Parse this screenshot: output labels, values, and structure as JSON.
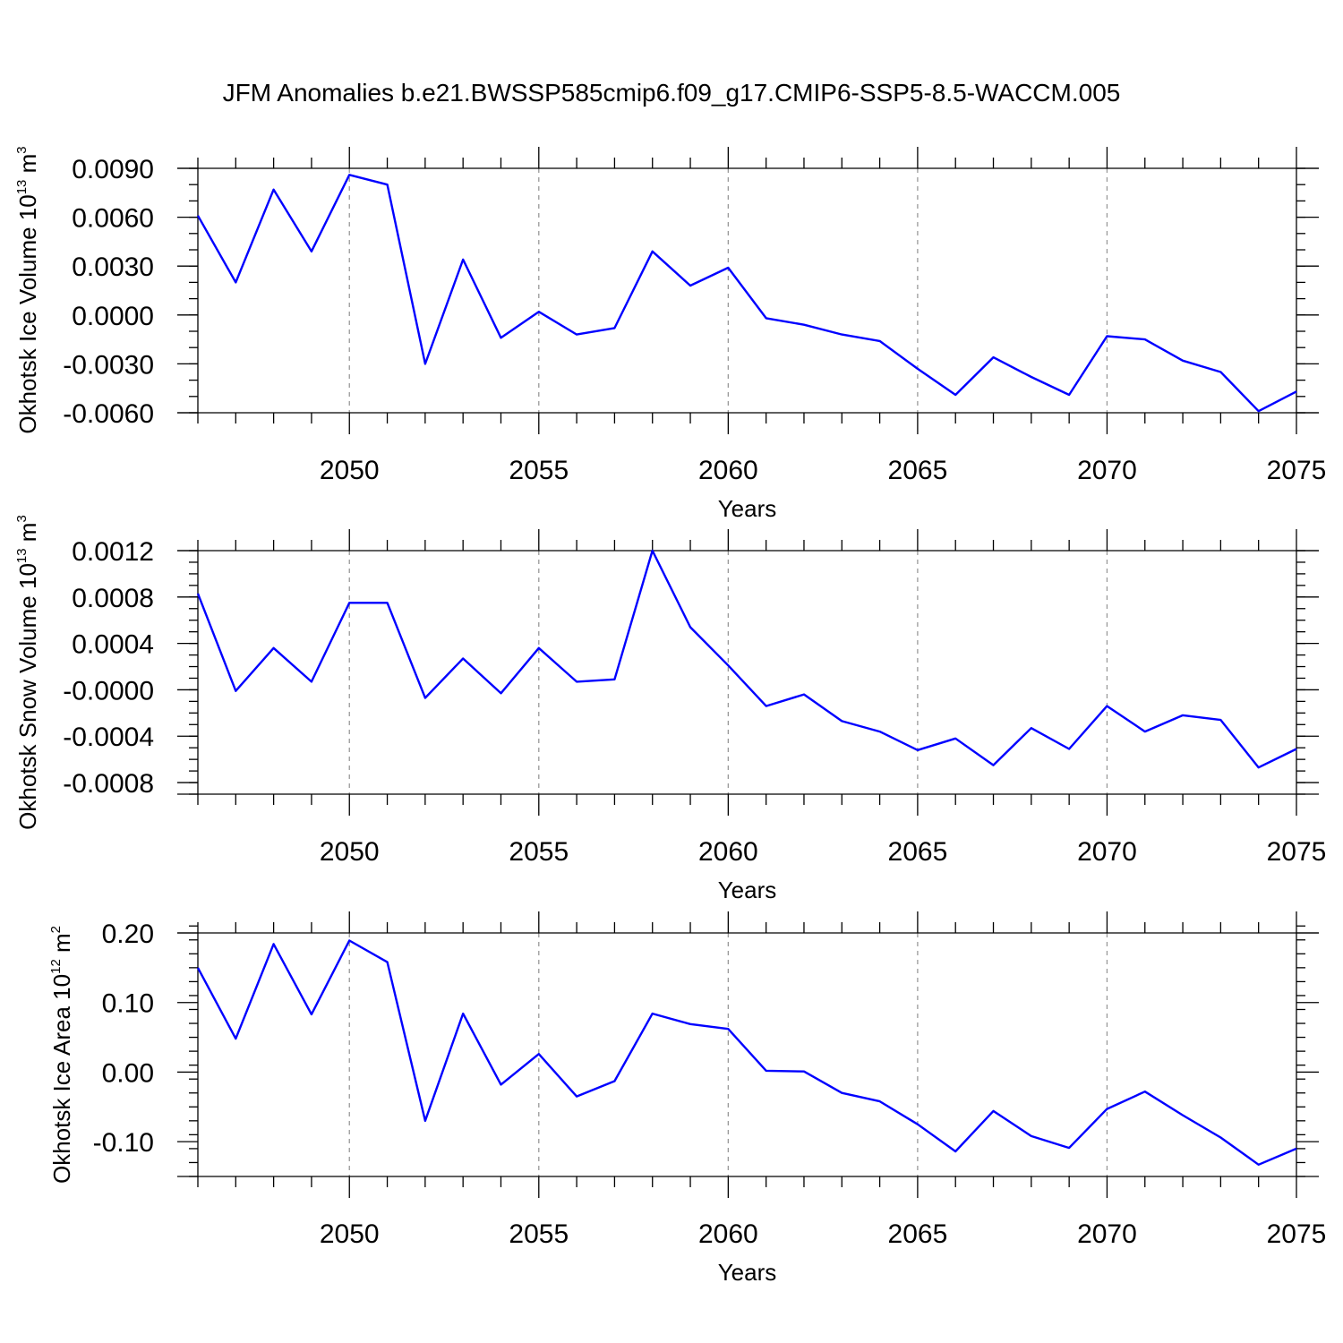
{
  "figure": {
    "title": "JFM Anomalies b.e21.BWSSP585cmip6.f09_g17.CMIP6-SSP5-8.5-WACCM.005"
  },
  "colors": {
    "series": "#0000ff",
    "grid": "#999999",
    "axis": "#000000"
  },
  "chart_data": [
    {
      "type": "line",
      "title": "JFM Anomalies b.e21.BWSSP585cmip6.f09_g17.CMIP6-SSP5-8.5-WACCM.005",
      "xlabel": "Years",
      "ylabel_main": "Okhotsk Ice Volume 10",
      "ylabel_exp": "13",
      "ylabel_unit": "m",
      "ylabel_unit_exp": "3",
      "xlim": [
        2046,
        2075
      ],
      "ylim": [
        -0.006,
        0.009
      ],
      "yticks": [
        0.009,
        0.006,
        0.003,
        0.0,
        -0.003,
        -0.006
      ],
      "ytick_labels": [
        "0.0090",
        "0.0060",
        "0.0030",
        "0.0000",
        "-0.0030",
        "-0.0060"
      ],
      "ytick_minor_step": 0.001,
      "xticks": [
        2050,
        2055,
        2060,
        2065,
        2070,
        2075
      ],
      "xtick_labels": [
        "2050",
        "2055",
        "2060",
        "2065",
        "2070",
        "2075"
      ],
      "grid_x": [
        2050,
        2055,
        2060,
        2065,
        2070
      ],
      "x": [
        2046,
        2047,
        2048,
        2049,
        2050,
        2051,
        2052,
        2053,
        2054,
        2055,
        2056,
        2057,
        2058,
        2059,
        2060,
        2061,
        2062,
        2063,
        2064,
        2065,
        2066,
        2067,
        2068,
        2069,
        2070,
        2071,
        2072,
        2073,
        2074,
        2075
      ],
      "series": [
        {
          "name": "Okhotsk Ice Volume",
          "values": [
            0.0061,
            0.002,
            0.0077,
            0.0039,
            0.0086,
            0.008,
            -0.003,
            0.0034,
            -0.0014,
            0.0002,
            -0.0012,
            -0.0008,
            0.0039,
            0.0018,
            0.0029,
            -0.0002,
            -0.0006,
            -0.0012,
            -0.0016,
            -0.0033,
            -0.0049,
            -0.0026,
            -0.0038,
            -0.0049,
            -0.0013,
            -0.0015,
            -0.0028,
            -0.0035,
            -0.0059,
            -0.0047
          ]
        }
      ]
    },
    {
      "type": "line",
      "xlabel": "Years",
      "ylabel_main": "Okhotsk Snow Volume 10",
      "ylabel_exp": "13",
      "ylabel_unit": "m",
      "ylabel_unit_exp": "3",
      "xlim": [
        2046,
        2075
      ],
      "ylim": [
        -0.0009,
        0.0012
      ],
      "yticks": [
        0.0012,
        0.0008,
        0.0004,
        0.0,
        -0.0004,
        -0.0008
      ],
      "ytick_labels": [
        "0.0012",
        "0.0008",
        "0.0004",
        "-0.0000",
        "-0.0004",
        "-0.0008"
      ],
      "ytick_minor_step": 0.0001,
      "xticks": [
        2050,
        2055,
        2060,
        2065,
        2070,
        2075
      ],
      "xtick_labels": [
        "2050",
        "2055",
        "2060",
        "2065",
        "2070",
        "2075"
      ],
      "grid_x": [
        2050,
        2055,
        2060,
        2065,
        2070
      ],
      "x": [
        2046,
        2047,
        2048,
        2049,
        2050,
        2051,
        2052,
        2053,
        2054,
        2055,
        2056,
        2057,
        2058,
        2059,
        2060,
        2061,
        2062,
        2063,
        2064,
        2065,
        2066,
        2067,
        2068,
        2069,
        2070,
        2071,
        2072,
        2073,
        2074,
        2075
      ],
      "series": [
        {
          "name": "Okhotsk Snow Volume",
          "values": [
            0.00083,
            -1e-05,
            0.00036,
            7e-05,
            0.00075,
            0.00075,
            -7e-05,
            0.00027,
            -3e-05,
            0.00036,
            7e-05,
            9e-05,
            0.0012,
            0.00054,
            0.00021,
            -0.00014,
            -4e-05,
            -0.00027,
            -0.00036,
            -0.00052,
            -0.00042,
            -0.00065,
            -0.00033,
            -0.00051,
            -0.00014,
            -0.00036,
            -0.00022,
            -0.00026,
            -0.00067,
            -0.00051
          ]
        }
      ]
    },
    {
      "type": "line",
      "xlabel": "Years",
      "ylabel_main": "Okhotsk Ice Area 10",
      "ylabel_exp": "12",
      "ylabel_unit": "m",
      "ylabel_unit_exp": "2",
      "xlim": [
        2046,
        2075
      ],
      "ylim": [
        -0.15,
        0.2
      ],
      "yticks": [
        0.2,
        0.1,
        0.0,
        -0.1
      ],
      "ytick_labels": [
        "0.20",
        "0.10",
        "0.00",
        "-0.10"
      ],
      "ytick_minor_step": 0.02,
      "xticks": [
        2050,
        2055,
        2060,
        2065,
        2070,
        2075
      ],
      "xtick_labels": [
        "2050",
        "2055",
        "2060",
        "2065",
        "2070",
        "2075"
      ],
      "grid_x": [
        2050,
        2055,
        2060,
        2065,
        2070
      ],
      "x": [
        2046,
        2047,
        2048,
        2049,
        2050,
        2051,
        2052,
        2053,
        2054,
        2055,
        2056,
        2057,
        2058,
        2059,
        2060,
        2061,
        2062,
        2063,
        2064,
        2065,
        2066,
        2067,
        2068,
        2069,
        2070,
        2071,
        2072,
        2073,
        2074,
        2075
      ],
      "series": [
        {
          "name": "Okhotsk Ice Area",
          "values": [
            0.15,
            0.048,
            0.184,
            0.083,
            0.189,
            0.158,
            -0.07,
            0.084,
            -0.018,
            0.026,
            -0.035,
            -0.013,
            0.084,
            0.069,
            0.062,
            0.002,
            0.001,
            -0.03,
            -0.042,
            -0.075,
            -0.114,
            -0.056,
            -0.092,
            -0.109,
            -0.053,
            -0.028,
            -0.062,
            -0.094,
            -0.133,
            -0.11
          ]
        }
      ]
    }
  ]
}
